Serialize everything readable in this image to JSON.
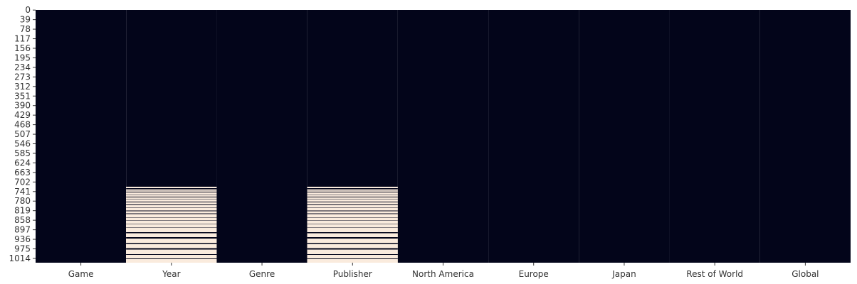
{
  "chart_data": {
    "type": "heatmap",
    "title": "",
    "xlabel": "",
    "ylabel": "",
    "columns": [
      "Game",
      "Year",
      "Genre",
      "Publisher",
      "North America",
      "Europe",
      "Japan",
      "Rest of World",
      "Global"
    ],
    "row_count": 1032,
    "y_tick_labels": [
      "0",
      "39",
      "78",
      "117",
      "156",
      "195",
      "234",
      "273",
      "312",
      "351",
      "390",
      "429",
      "468",
      "507",
      "546",
      "585",
      "624",
      "663",
      "702",
      "741",
      "780",
      "819",
      "858",
      "897",
      "936",
      "975",
      "1014"
    ],
    "value_colors": {
      "present": "#03051a",
      "missing": "#faebdd"
    },
    "missing_ranges": {
      "Year": [
        [
          722,
          726
        ],
        [
          730,
          733
        ],
        [
          736,
          741
        ],
        [
          745,
          752
        ],
        [
          755,
          762
        ],
        [
          765,
          770
        ],
        [
          773,
          782
        ],
        [
          786,
          794
        ],
        [
          797,
          806
        ],
        [
          809,
          818
        ],
        [
          822,
          830
        ],
        [
          834,
          845
        ],
        [
          848,
          858
        ],
        [
          861,
          871
        ],
        [
          874,
          887
        ],
        [
          890,
          906
        ],
        [
          911,
          927
        ],
        [
          933,
          950
        ],
        [
          955,
          972
        ],
        [
          978,
          996
        ],
        [
          1000,
          1014
        ],
        [
          1018,
          1031
        ]
      ],
      "Publisher": [
        [
          722,
          726
        ],
        [
          730,
          733
        ],
        [
          736,
          741
        ],
        [
          745,
          752
        ],
        [
          755,
          762
        ],
        [
          765,
          770
        ],
        [
          773,
          782
        ],
        [
          786,
          794
        ],
        [
          797,
          806
        ],
        [
          809,
          818
        ],
        [
          822,
          830
        ],
        [
          834,
          845
        ],
        [
          848,
          858
        ],
        [
          861,
          871
        ],
        [
          874,
          887
        ],
        [
          890,
          906
        ],
        [
          911,
          927
        ],
        [
          933,
          950
        ],
        [
          955,
          972
        ],
        [
          978,
          996
        ],
        [
          1000,
          1014
        ],
        [
          1018,
          1031
        ]
      ]
    },
    "legend": "none",
    "grid": false
  }
}
